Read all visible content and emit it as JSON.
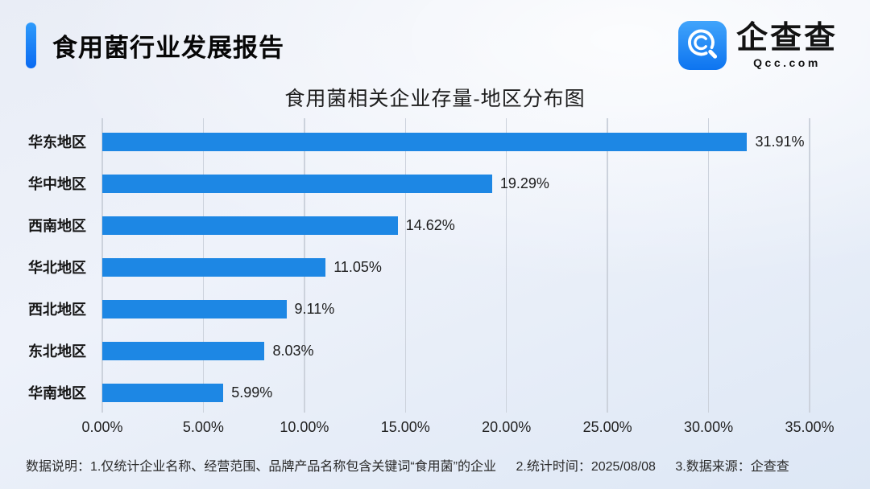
{
  "header": {
    "title": "食用菌行业发展报告",
    "logo": {
      "name": "企查查",
      "domain": "Qcc.com",
      "icon": "qcc-magnifier-icon",
      "icon_gradient_top": "#41a4fb",
      "icon_gradient_bottom": "#0d74f0"
    }
  },
  "chart_data": {
    "type": "bar",
    "orientation": "horizontal",
    "title": "食用菌相关企业存量-地区分布图",
    "categories": [
      "华东地区",
      "华中地区",
      "西南地区",
      "华北地区",
      "西北地区",
      "东北地区",
      "华南地区"
    ],
    "values": [
      31.91,
      19.29,
      14.62,
      11.05,
      9.11,
      8.03,
      5.99
    ],
    "value_labels": [
      "31.91%",
      "19.29%",
      "14.62%",
      "11.05%",
      "9.11%",
      "8.03%",
      "5.99%"
    ],
    "xlim": [
      0,
      35
    ],
    "x_ticks": [
      "0.00%",
      "5.00%",
      "10.00%",
      "15.00%",
      "20.00%",
      "25.00%",
      "30.00%",
      "35.00%"
    ],
    "bar_color": "#1d87e4",
    "grid": true,
    "legend": false
  },
  "footer": {
    "notes": [
      "数据说明：1.仅统计企业名称、经营范围、品牌产品名称包含关键词“食用菌”的企业",
      "2.统计时间：2025/08/08",
      "3.数据来源：企查查"
    ]
  },
  "colors": {
    "accent_gradient_top": "#2f9bfb",
    "accent_gradient_bottom": "#0a6af2",
    "bar": "#1d87e4",
    "gridline": "#ccd2dc",
    "background": "#e9eef7",
    "text": "#1c1c1c"
  }
}
